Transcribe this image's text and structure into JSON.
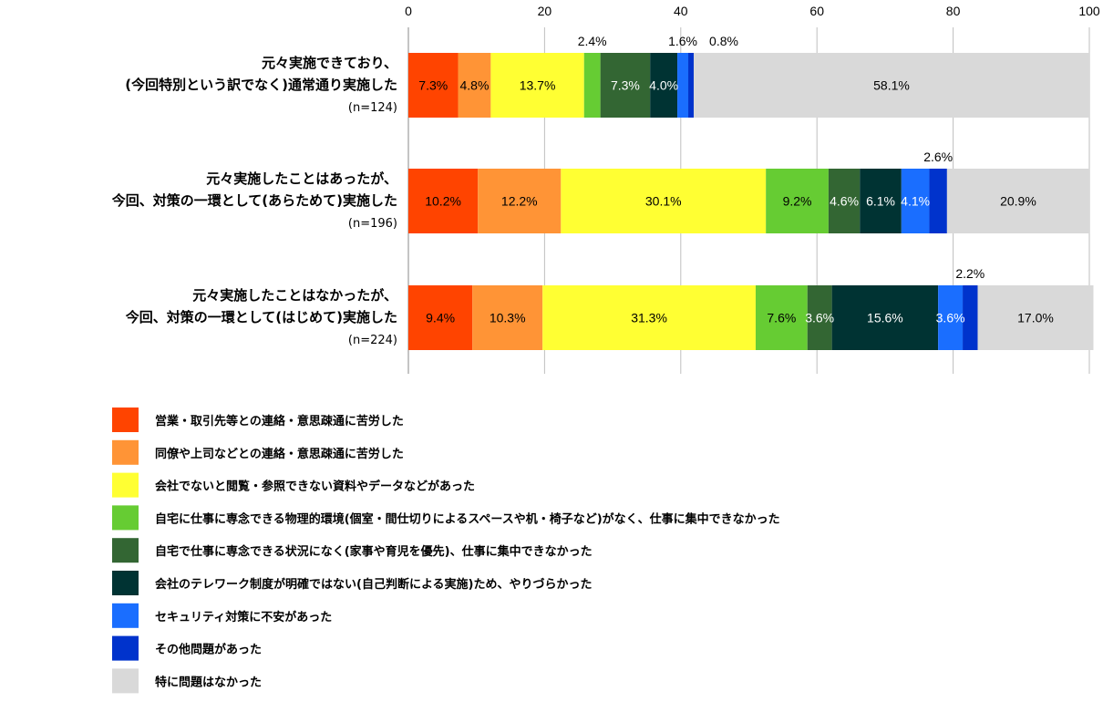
{
  "chart_data": {
    "type": "bar",
    "orientation": "horizontal",
    "stacked": true,
    "xlim": [
      0,
      100
    ],
    "x_ticks": [
      "0",
      "20",
      "40",
      "60",
      "80",
      "100"
    ],
    "grid": true,
    "legend_position": "bottom",
    "categories": [
      {
        "lines": [
          "元々実施できており、",
          "(今回特別という訳でなく)通常通り実施した"
        ],
        "n": "(n=124)"
      },
      {
        "lines": [
          "元々実施したことはあったが、",
          "今回、対策の一環として(あらためて)実施した"
        ],
        "n": "(n=196)"
      },
      {
        "lines": [
          "元々実施したことはなかったが、",
          "今回、対策の一環として(はじめて)実施した"
        ],
        "n": "(n=224)"
      }
    ],
    "series": [
      {
        "name": "営業・取引先等との連絡・意思疎通に苦労した",
        "color": "#ff4400",
        "values": [
          7.3,
          10.2,
          9.4
        ],
        "labels": [
          "7.3%",
          "10.2%",
          "9.4%"
        ],
        "label_color": "#000000"
      },
      {
        "name": "同僚や上司などとの連絡・意思疎通に苦労した",
        "color": "#ff9436",
        "values": [
          4.8,
          12.2,
          10.3
        ],
        "labels": [
          "4.8%",
          "12.2%",
          "10.3%"
        ],
        "label_color": "#000000"
      },
      {
        "name": "会社でないと閲覧・参照できない資料やデータなどがあった",
        "color": "#ffff33",
        "values": [
          13.7,
          30.1,
          31.3
        ],
        "labels": [
          "13.7%",
          "30.1%",
          "31.3%"
        ],
        "label_color": "#000000"
      },
      {
        "name": "自宅に仕事に専念できる物理的環境(個室・間仕切りによるスペースや机・椅子など)がなく、仕事に集中できなかった",
        "color": "#66cc33",
        "values": [
          2.4,
          9.2,
          7.6
        ],
        "labels": [
          "2.4%",
          "9.2%",
          "7.6%"
        ],
        "label_color": "#000000"
      },
      {
        "name": "自宅で仕事に専念できる状況になく(家事や育児を優先)、仕事に集中できなかった",
        "color": "#336633",
        "values": [
          7.3,
          4.6,
          3.6
        ],
        "labels": [
          "7.3%",
          "4.6%",
          "3.6%"
        ],
        "label_color": "#ffffff"
      },
      {
        "name": "会社のテレワーク制度が明確ではない(自己判断による実施)ため、やりづらかった",
        "color": "#003333",
        "values": [
          4.0,
          6.1,
          15.6
        ],
        "labels": [
          "4.0%",
          "6.1%",
          "15.6%"
        ],
        "label_color": "#ffffff"
      },
      {
        "name": "セキュリティ対策に不安があった",
        "color": "#1a6eff",
        "values": [
          1.6,
          4.1,
          3.6
        ],
        "labels": [
          "1.6%",
          "4.1%",
          "3.6%"
        ],
        "label_color": "#ffffff"
      },
      {
        "name": "その他問題があった",
        "color": "#0033cc",
        "values": [
          0.8,
          2.6,
          2.2
        ],
        "labels": [
          "0.8%",
          "2.6%",
          "2.2%"
        ],
        "label_color": "#000000"
      },
      {
        "name": "特に問題はなかった",
        "color": "#d9d9d9",
        "values": [
          58.1,
          20.9,
          17.0
        ],
        "labels": [
          "58.1%",
          "20.9%",
          "17.0%"
        ],
        "label_color": "#000000"
      }
    ]
  }
}
